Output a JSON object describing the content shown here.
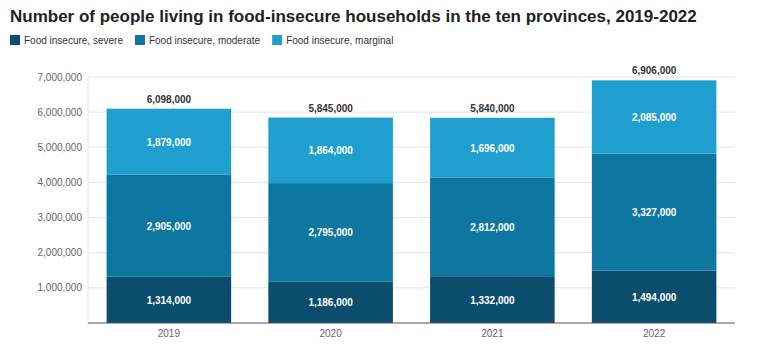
{
  "chart_data": {
    "type": "bar",
    "title": "Number of people living in food-insecure households in the ten provinces, 2019-2022",
    "categories": [
      "2019",
      "2020",
      "2021",
      "2022"
    ],
    "stacked": true,
    "grid": true,
    "legend": "top-left",
    "data_labels": true,
    "series": [
      {
        "name": "Food insecure, severe",
        "color": "#0b4d6c",
        "values": [
          1314000,
          1186000,
          1332000,
          1494000
        ],
        "value_labels": [
          "1,314,000",
          "1,186,000",
          "1,332,000",
          "1,494,000"
        ]
      },
      {
        "name": "Food insecure, moderate",
        "color": "#0d77a1",
        "values": [
          2905000,
          2795000,
          2812000,
          3327000
        ],
        "value_labels": [
          "2,905,000",
          "2,795,000",
          "2,812,000",
          "3,327,000"
        ]
      },
      {
        "name": "Food insecure, marginal",
        "color": "#1f9fd0",
        "values": [
          1879000,
          1864000,
          1696000,
          2085000
        ],
        "value_labels": [
          "1,879,000",
          "1,864,000",
          "1,696,000",
          "2,085,000"
        ]
      }
    ],
    "totals": [
      6098000,
      5845000,
      5840000,
      6906000
    ],
    "total_labels": [
      "6,098,000",
      "5,845,000",
      "5,840,000",
      "6,906,000"
    ],
    "ylim": [
      0,
      7000000
    ],
    "yticks": [
      {
        "value": 1000000,
        "label": "1,000,000"
      },
      {
        "value": 2000000,
        "label": "2,000,000"
      },
      {
        "value": 3000000,
        "label": "3,000,000"
      },
      {
        "value": 4000000,
        "label": "4,000,000"
      },
      {
        "value": 5000000,
        "label": "5,000,000"
      },
      {
        "value": 6000000,
        "label": "6,000,000"
      },
      {
        "value": 7000000,
        "label": "7,000,000"
      }
    ]
  }
}
